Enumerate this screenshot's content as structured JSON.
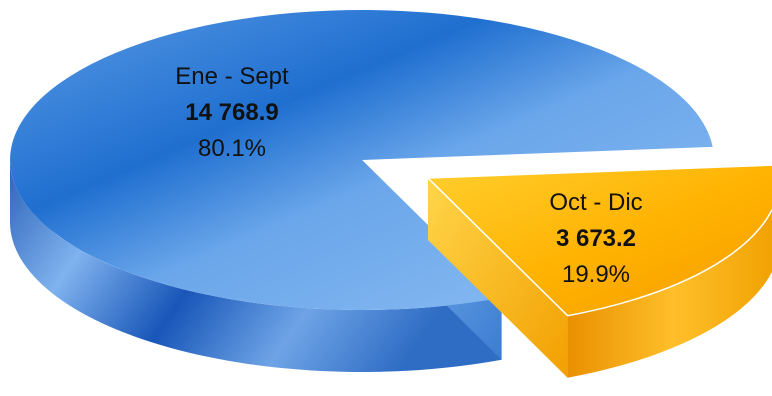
{
  "chart_data": {
    "type": "pie",
    "style": "3d-exploded",
    "slices": [
      {
        "label": "Ene - Sept",
        "value": "14 768.9",
        "value_num": 14768.9,
        "percent": "80.1%",
        "fraction": 0.801,
        "color": "#3a86d6"
      },
      {
        "label": "Oct - Dic",
        "value": "3 673.2",
        "value_num": 3673.2,
        "percent": "19.9%",
        "fraction": 0.199,
        "color": "#f5a800"
      }
    ],
    "legend": "none"
  }
}
